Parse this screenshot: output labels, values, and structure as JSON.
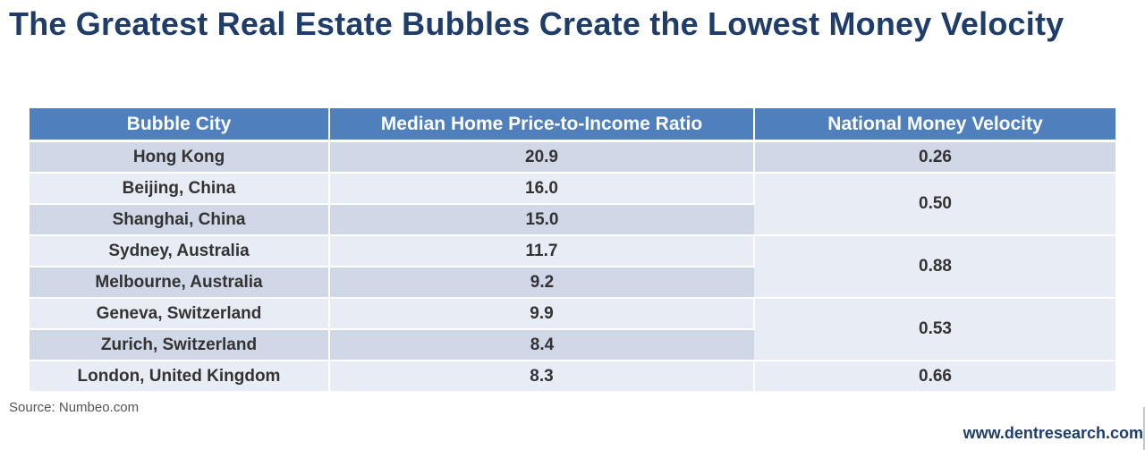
{
  "title": "The Greatest Real Estate Bubbles Create the Lowest Money Velocity",
  "table": {
    "headers": [
      "Bubble City",
      "Median Home Price-to-Income Ratio",
      "National Money Velocity"
    ],
    "rows": [
      {
        "city": "Hong Kong",
        "ratio": "20.9"
      },
      {
        "city": "Beijing,  China",
        "ratio": "16.0"
      },
      {
        "city": "Shanghai, China",
        "ratio": "15.0"
      },
      {
        "city": "Sydney, Australia",
        "ratio": "11.7"
      },
      {
        "city": "Melbourne, Australia",
        "ratio": "9.2"
      },
      {
        "city": "Geneva, Switzerland",
        "ratio": "9.9"
      },
      {
        "city": "Zurich, Switzerland",
        "ratio": "8.4"
      },
      {
        "city": "London, United Kingdom",
        "ratio": "8.3"
      }
    ],
    "velocity": {
      "hong_kong": "0.26",
      "china": "0.50",
      "australia": "0.88",
      "switzerland": "0.53",
      "uk": "0.66"
    }
  },
  "source": "Source: Numbeo.com",
  "website": "www.dentresearch.com",
  "colors": {
    "title": "#1f3d6b",
    "header_bg": "#4f7fbc",
    "row_dark": "#d0d7e6",
    "row_light": "#e8ecf4"
  }
}
